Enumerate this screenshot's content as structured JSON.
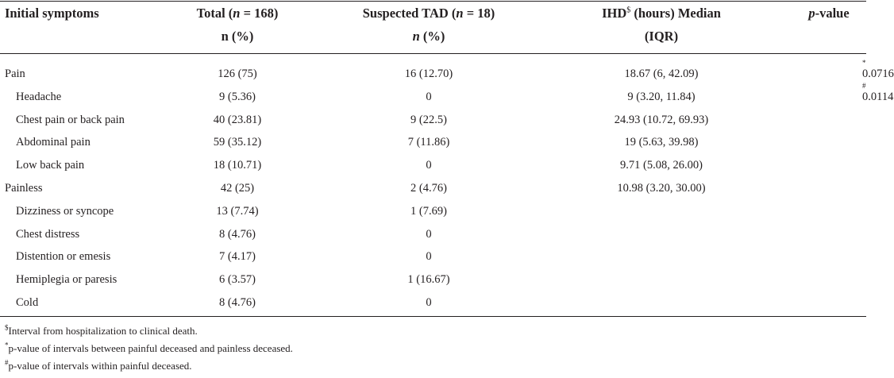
{
  "header": {
    "col0": "Initial symptoms",
    "col1_line1_pre": "Total (",
    "col1_n": "n",
    "col1_line1_post": " = 168)",
    "col1_line2": "n (%)",
    "col2_line1_pre": "Suspected TAD (",
    "col2_n": "n",
    "col2_line1_post": " = 18)",
    "col2_line2_n": "n",
    "col2_line2_post": " (%)",
    "col3_line1_pre": "IHD",
    "col3_sup": "$",
    "col3_line1_post": " (hours) Median",
    "col3_line2": "(IQR)",
    "col4_p": "p",
    "col4_post": "-value"
  },
  "rows": [
    {
      "label": "Pain",
      "indent": false,
      "total": "126 (75)",
      "tad": "16 (12.70)",
      "ihd": "18.67 (6, 42.09)",
      "p": "0.0716",
      "mark": "*"
    },
    {
      "label": "Headache",
      "indent": true,
      "total": "9 (5.36)",
      "tad": "0",
      "ihd": "9 (3.20, 11.84)",
      "p": "0.0114",
      "mark": "#"
    },
    {
      "label": "Chest pain or back pain",
      "indent": true,
      "total": "40 (23.81)",
      "tad": "9 (22.5)",
      "ihd": "24.93 (10.72, 69.93)",
      "p": "",
      "mark": ""
    },
    {
      "label": "Abdominal pain",
      "indent": true,
      "total": "59 (35.12)",
      "tad": "7 (11.86)",
      "ihd": "19 (5.63, 39.98)",
      "p": "",
      "mark": ""
    },
    {
      "label": "Low back pain",
      "indent": true,
      "total": "18 (10.71)",
      "tad": "0",
      "ihd": "9.71 (5.08, 26.00)",
      "p": "",
      "mark": ""
    },
    {
      "label": "Painless",
      "indent": false,
      "total": "42 (25)",
      "tad": "2 (4.76)",
      "ihd": "10.98 (3.20, 30.00)",
      "p": "",
      "mark": ""
    },
    {
      "label": "Dizziness or syncope",
      "indent": true,
      "total": "13 (7.74)",
      "tad": "1 (7.69)",
      "ihd": "",
      "p": "",
      "mark": ""
    },
    {
      "label": "Chest distress",
      "indent": true,
      "total": "8 (4.76)",
      "tad": "0",
      "ihd": "",
      "p": "",
      "mark": ""
    },
    {
      "label": "Distention or emesis",
      "indent": true,
      "total": "7 (4.17)",
      "tad": "0",
      "ihd": "",
      "p": "",
      "mark": ""
    },
    {
      "label": "Hemiplegia or paresis",
      "indent": true,
      "total": "6 (3.57)",
      "tad": "1 (16.67)",
      "ihd": "",
      "p": "",
      "mark": ""
    },
    {
      "label": "Cold",
      "indent": true,
      "total": "8 (4.76)",
      "tad": "0",
      "ihd": "",
      "p": "",
      "mark": ""
    }
  ],
  "footnotes": [
    {
      "mark": "$",
      "text": "Interval from hospitalization to clinical death."
    },
    {
      "mark": "*",
      "text": "p-value of intervals between painful deceased and painless deceased."
    },
    {
      "mark": "#",
      "text": "p-value of intervals within painful deceased."
    }
  ]
}
